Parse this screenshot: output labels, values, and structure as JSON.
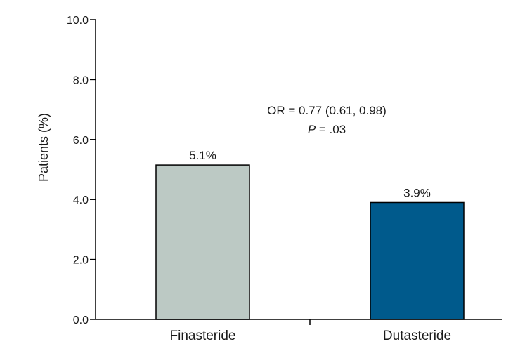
{
  "chart_data": {
    "type": "bar",
    "title": "",
    "xlabel": "",
    "ylabel": "Patients (%)",
    "ylim": [
      0,
      10
    ],
    "yticks": [
      "0.0",
      "2.0",
      "4.0",
      "6.0",
      "8.0",
      "10.0"
    ],
    "categories": [
      "Finasteride",
      "Dutasteride"
    ],
    "values": [
      5.15,
      3.9
    ],
    "data_labels": [
      "5.1%",
      "3.9%"
    ],
    "bar_colors": [
      "#bcc9c4",
      "#005a8c"
    ],
    "grid": false,
    "legend": "none",
    "annotation": {
      "line1": "OR = 0.77 (0.61, 0.98)",
      "line2_italic": "P",
      "line2_rest": " = .03"
    }
  }
}
